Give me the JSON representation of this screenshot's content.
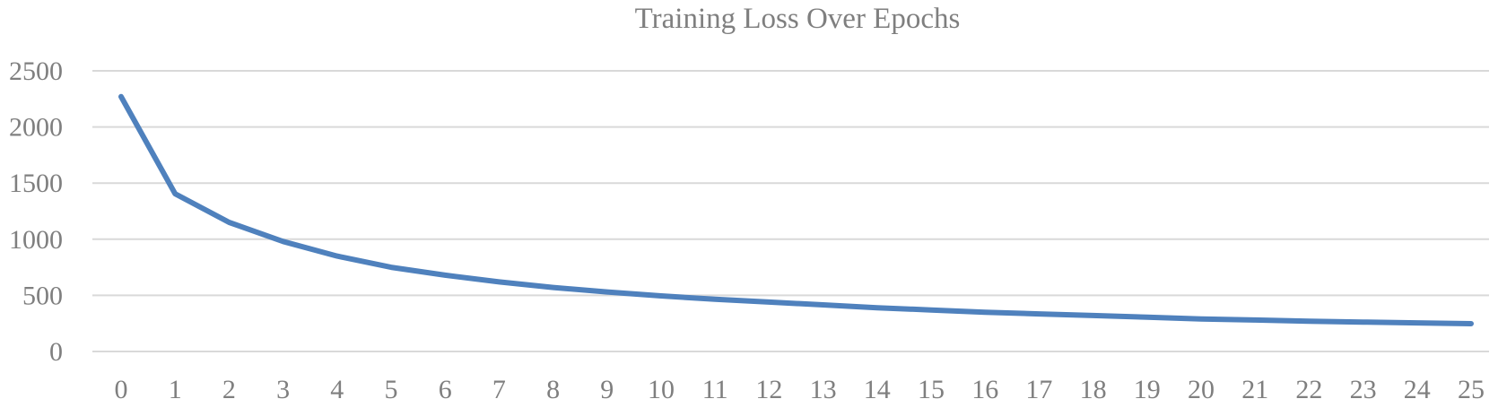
{
  "chart_data": {
    "type": "line",
    "title": "Training Loss Over Epochs",
    "xlabel": "",
    "ylabel": "",
    "ylim": [
      0,
      2500
    ],
    "yticks": [
      0,
      500,
      1000,
      1500,
      2000,
      2500
    ],
    "grid": true,
    "legend": "none",
    "x": [
      0,
      1,
      2,
      3,
      4,
      5,
      6,
      7,
      8,
      9,
      10,
      11,
      12,
      13,
      14,
      15,
      16,
      17,
      18,
      19,
      20,
      21,
      22,
      23,
      24,
      25
    ],
    "series": [
      {
        "color": "#4f81bd",
        "values": [
          2270,
          1405,
          1150,
          980,
          850,
          750,
          680,
          620,
          570,
          530,
          495,
          465,
          440,
          415,
          390,
          370,
          350,
          335,
          320,
          305,
          290,
          280,
          270,
          262,
          255,
          248
        ]
      }
    ]
  }
}
